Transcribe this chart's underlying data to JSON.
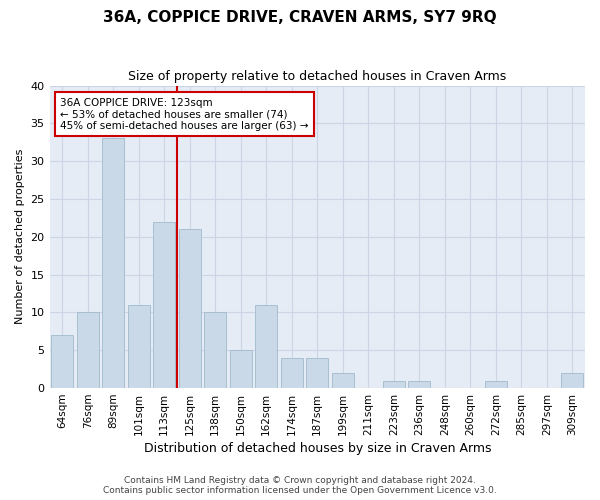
{
  "title": "36A, COPPICE DRIVE, CRAVEN ARMS, SY7 9RQ",
  "subtitle": "Size of property relative to detached houses in Craven Arms",
  "xlabel": "Distribution of detached houses by size in Craven Arms",
  "ylabel": "Number of detached properties",
  "categories": [
    "64sqm",
    "76sqm",
    "89sqm",
    "101sqm",
    "113sqm",
    "125sqm",
    "138sqm",
    "150sqm",
    "162sqm",
    "174sqm",
    "187sqm",
    "199sqm",
    "211sqm",
    "223sqm",
    "236sqm",
    "248sqm",
    "260sqm",
    "272sqm",
    "285sqm",
    "297sqm",
    "309sqm"
  ],
  "values": [
    7,
    10,
    33,
    11,
    22,
    21,
    10,
    5,
    11,
    4,
    4,
    2,
    0,
    1,
    1,
    0,
    0,
    1,
    0,
    0,
    2
  ],
  "bar_color": "#c9d9e8",
  "bar_edge_color": "#a8bfd0",
  "vline_x": 4.5,
  "vline_color": "#cc0000",
  "annotation_text": "36A COPPICE DRIVE: 123sqm\n← 53% of detached houses are smaller (74)\n45% of semi-detached houses are larger (63) →",
  "annotation_box_color": "#ffffff",
  "annotation_box_edge": "#cc0000",
  "ylim": [
    0,
    40
  ],
  "yticks": [
    0,
    5,
    10,
    15,
    20,
    25,
    30,
    35,
    40
  ],
  "grid_color": "#ccd5e5",
  "bg_color": "#e6ecf5",
  "fig_bg_color": "#ffffff",
  "footer": "Contains HM Land Registry data © Crown copyright and database right 2024.\nContains public sector information licensed under the Open Government Licence v3.0."
}
